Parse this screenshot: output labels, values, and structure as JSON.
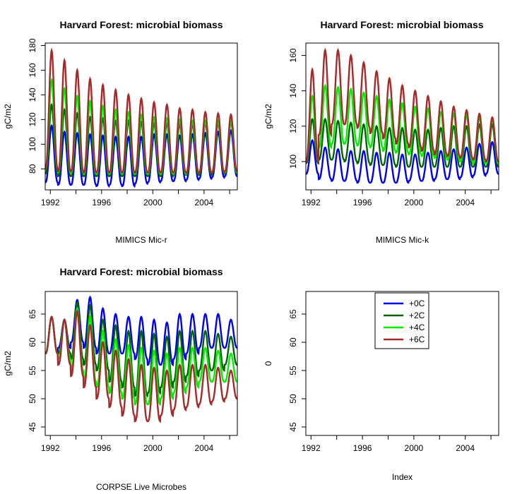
{
  "colors": {
    "plus0": "#0000ee",
    "plus2": "#006400",
    "plus4": "#00ee00",
    "plus6": "#a52a2a"
  },
  "chart_data": [
    {
      "type": "line",
      "title": "Harvard Forest: microbial biomass",
      "xlabel": "MIMICS Mic-r",
      "ylabel": "gC/m2",
      "x_ticks": [
        "1992",
        "1996",
        "2000",
        "2004"
      ],
      "y_ticks": [
        "80",
        "100",
        "120",
        "140",
        "160",
        "180"
      ],
      "xlim": [
        1991.6,
        2006.6
      ],
      "ylim": [
        63,
        182
      ],
      "x_tick_values": [
        1992,
        1994,
        1996,
        1998,
        2000,
        2002,
        2004,
        2006
      ],
      "y_tick_values": [
        80,
        100,
        120,
        140,
        160,
        180
      ],
      "seasonal_peaks_series": [
        {
          "name": "+0C",
          "color": "#0000ee",
          "peaks": [
            115,
            110,
            109,
            108,
            107,
            106,
            106,
            106,
            108,
            108,
            107,
            108,
            109,
            110,
            111
          ],
          "troughs": [
            69,
            67,
            67,
            67,
            66,
            67,
            66,
            68,
            69,
            70,
            70,
            71,
            72,
            73,
            74
          ]
        },
        {
          "name": "+2C",
          "color": "#006400",
          "peaks": [
            132,
            128,
            125,
            122,
            121,
            119,
            119,
            118,
            117,
            117,
            116,
            116,
            117,
            117,
            118
          ],
          "troughs": [
            76,
            74,
            74,
            74,
            74,
            74,
            74,
            74,
            74,
            74,
            75,
            75,
            75,
            76,
            76
          ]
        },
        {
          "name": "+4C",
          "color": "#00ee00",
          "peaks": [
            152,
            145,
            139,
            135,
            131,
            128,
            126,
            124,
            122,
            121,
            120,
            119,
            119,
            119,
            119
          ],
          "troughs": [
            80,
            77,
            77,
            76,
            76,
            76,
            76,
            76,
            76,
            76,
            76,
            77,
            77,
            77,
            77
          ]
        },
        {
          "name": "+6C",
          "color": "#a52a2a",
          "peaks": [
            176,
            168,
            160,
            153,
            148,
            144,
            140,
            137,
            134,
            132,
            129,
            128,
            126,
            125,
            124
          ],
          "troughs": [
            80,
            78,
            78,
            77,
            77,
            77,
            77,
            77,
            77,
            77,
            77,
            77,
            77,
            77,
            78
          ]
        }
      ]
    },
    {
      "type": "line",
      "title": "Harvard Forest: microbial biomass",
      "xlabel": "MIMICS Mic-k",
      "ylabel": "gC/m2",
      "x_ticks": [
        "1992",
        "1996",
        "2000",
        "2004"
      ],
      "y_ticks": [
        "100",
        "120",
        "140",
        "160"
      ],
      "xlim": [
        1991.6,
        2006.6
      ],
      "ylim": [
        84,
        167
      ],
      "x_tick_values": [
        1992,
        1994,
        1996,
        1998,
        2000,
        2002,
        2004,
        2006
      ],
      "y_tick_values": [
        100,
        120,
        140,
        160
      ],
      "seasonal_peaks_series": [
        {
          "name": "+0C",
          "color": "#0000ee",
          "peaks": [
            112,
            108,
            107,
            106,
            106,
            105,
            105,
            104,
            104,
            105,
            106,
            107,
            108,
            110,
            111
          ],
          "troughs": [
            93,
            90,
            89,
            89,
            88,
            88,
            88,
            88,
            89,
            89,
            90,
            90,
            91,
            92,
            93
          ]
        },
        {
          "name": "+2C",
          "color": "#006400",
          "peaks": [
            124,
            124,
            123,
            122,
            121,
            120,
            119,
            119,
            118,
            118,
            119,
            120,
            120,
            121,
            121
          ],
          "troughs": [
            99,
            101,
            101,
            100,
            99,
            98,
            98,
            97,
            97,
            97,
            97,
            97,
            97,
            97,
            97
          ]
        },
        {
          "name": "+4C",
          "color": "#00ee00",
          "peaks": [
            137,
            143,
            142,
            141,
            139,
            137,
            135,
            133,
            131,
            130,
            128,
            127,
            126,
            125,
            124
          ],
          "troughs": [
            100,
            108,
            110,
            110,
            109,
            108,
            106,
            105,
            104,
            103,
            102,
            101,
            100,
            99,
            99
          ]
        },
        {
          "name": "+6C",
          "color": "#a52a2a",
          "peaks": [
            152,
            163,
            163,
            160,
            156,
            151,
            147,
            143,
            140,
            137,
            134,
            131,
            129,
            127,
            125
          ],
          "troughs": [
            100,
            115,
            121,
            121,
            119,
            116,
            113,
            110,
            108,
            106,
            104,
            103,
            102,
            101,
            100
          ]
        }
      ]
    },
    {
      "type": "line",
      "title": "Harvard Forest: microbial biomass",
      "xlabel": "CORPSE Live Microbes",
      "ylabel": "gC/m2",
      "x_ticks": [
        "1992",
        "1996",
        "2000",
        "2004"
      ],
      "y_ticks": [
        "45",
        "50",
        "55",
        "60",
        "65"
      ],
      "xlim": [
        1991.6,
        2006.6
      ],
      "ylim": [
        43.5,
        69
      ],
      "x_tick_values": [
        1992,
        1994,
        1996,
        1998,
        2000,
        2002,
        2004,
        2006
      ],
      "y_tick_values": [
        45,
        50,
        55,
        60,
        65
      ],
      "seasonal_peaks_series": [
        {
          "name": "+0C",
          "color": "#0000ee",
          "peaks": [
            64.5,
            64,
            67.5,
            68,
            66,
            65,
            64.5,
            64.5,
            64,
            63.5,
            65,
            65,
            65,
            65,
            64
          ],
          "troughs": [
            58,
            59,
            60,
            59,
            58,
            58,
            58,
            57,
            56,
            56,
            57,
            58,
            59,
            59,
            59
          ]
        },
        {
          "name": "+2C",
          "color": "#006400",
          "peaks": [
            64.5,
            64,
            67,
            66.5,
            64,
            63,
            62,
            62,
            61.5,
            61,
            62,
            62,
            62,
            61.5,
            61
          ],
          "troughs": [
            58,
            58,
            57,
            56,
            55,
            53,
            52,
            50.5,
            51,
            52,
            53,
            54,
            55,
            55,
            56
          ]
        },
        {
          "name": "+4C",
          "color": "#00ee00",
          "peaks": [
            64.5,
            64,
            66,
            64.5,
            62,
            60.5,
            59.5,
            59,
            58.5,
            58,
            59,
            59,
            59,
            58.5,
            58
          ],
          "troughs": [
            58,
            57,
            55,
            53,
            52,
            51,
            50,
            49,
            49,
            50,
            51,
            52,
            53,
            53,
            53
          ]
        },
        {
          "name": "+6C",
          "color": "#a52a2a",
          "peaks": [
            64.5,
            64,
            65.5,
            63,
            60,
            58.5,
            57,
            56,
            55.5,
            55,
            56,
            56,
            56,
            55.5,
            55
          ],
          "troughs": [
            58,
            56,
            54,
            52,
            50,
            48.5,
            47,
            46,
            46,
            47,
            48,
            48.5,
            49,
            49.5,
            50
          ]
        }
      ]
    },
    {
      "type": "line",
      "title": "",
      "xlabel": "Index",
      "ylabel": "0",
      "x_ticks": [
        "1992",
        "1996",
        "2000",
        "2004"
      ],
      "y_ticks": [
        "45",
        "50",
        "55",
        "60",
        "65"
      ],
      "xlim": [
        1991.6,
        2006.6
      ],
      "ylim": [
        43.5,
        69
      ],
      "x_tick_values": [
        1992,
        1994,
        1996,
        1998,
        2000,
        2002,
        2004,
        2006
      ],
      "y_tick_values": [
        45,
        50,
        55,
        60,
        65
      ],
      "legend": {
        "placement": "top-center",
        "entries": [
          {
            "label": "+0C",
            "color": "#0000ee"
          },
          {
            "label": "+2C",
            "color": "#006400"
          },
          {
            "label": "+4C",
            "color": "#00ee00"
          },
          {
            "label": "+6C",
            "color": "#a52a2a"
          }
        ]
      }
    }
  ]
}
